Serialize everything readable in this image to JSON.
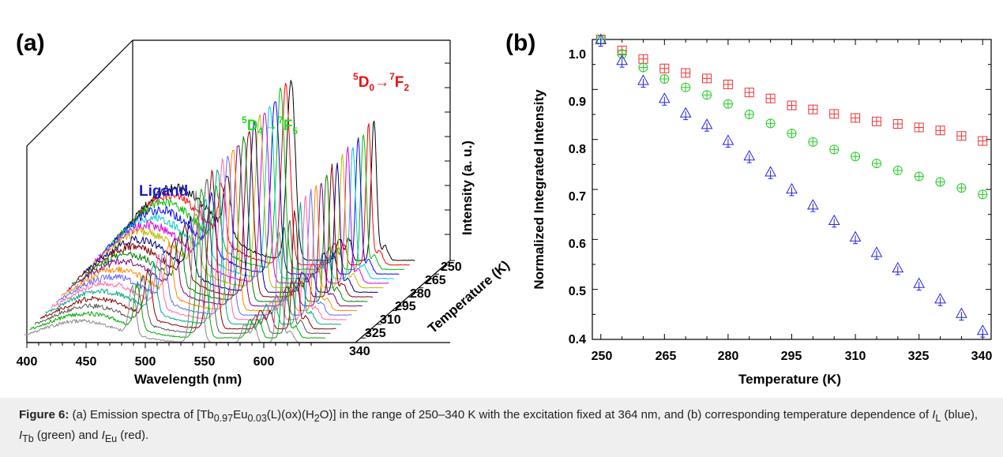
{
  "chart_data": [
    {
      "panel": "(a)",
      "type": "line",
      "style": "3d-waterfall",
      "xlabel": "Wavelength (nm)",
      "x_ticks": [
        "400",
        "450",
        "500",
        "550",
        "600"
      ],
      "xlim": [
        390,
        650
      ],
      "zlabel": "Intensity (a. u.)",
      "depth_label": "Temperature (K)",
      "depth_ticks": [
        "250",
        "265",
        "280",
        "295",
        "310",
        "325",
        "340"
      ],
      "temperatures": [
        250,
        255,
        260,
        265,
        270,
        275,
        280,
        285,
        290,
        295,
        300,
        305,
        310,
        315,
        320,
        325,
        330,
        335,
        340
      ],
      "series_colors": [
        "#000000",
        "#ff0000",
        "#00bb00",
        "#0000ff",
        "#00cccc",
        "#dd00dd",
        "#bbbb00",
        "#000080",
        "#800000",
        "#008000",
        "#800080",
        "#ff8800",
        "#6666ff",
        "#ff66aa",
        "#00aa88",
        "#880000",
        "#555555",
        "#00aa00",
        "#888888"
      ],
      "annotations": {
        "ligand": "Ligand",
        "tb_level_upper": "5",
        "tb_term_upper": "D",
        "tb_sub_upper": "4",
        "tb_level_lower": "7",
        "tb_term_lower": "F",
        "tb_sub_lower": "5",
        "eu_level_upper": "5",
        "eu_term_upper": "D",
        "eu_sub_upper": "0",
        "eu_level_lower": "7",
        "eu_term_lower": "F",
        "eu_sub_lower": "2",
        "arrow": "→"
      },
      "colors": {
        "ligand": "#1a1acc",
        "tb": "#22dd22",
        "eu": "#ee1111"
      }
    },
    {
      "panel": "(b)",
      "type": "scatter",
      "xlabel": "Temperature (K)",
      "ylabel": "Normalized Integrated Intensity",
      "xlim": [
        248,
        342
      ],
      "ylim": [
        0.4,
        1.0
      ],
      "x_ticks": [
        "250",
        "265",
        "280",
        "295",
        "310",
        "325",
        "340"
      ],
      "y_ticks": [
        "0.4",
        "0.5",
        "0.6",
        "0.7",
        "0.8",
        "0.9",
        "1.0"
      ],
      "x": [
        250,
        255,
        260,
        265,
        270,
        275,
        280,
        285,
        290,
        295,
        300,
        305,
        310,
        315,
        320,
        325,
        330,
        335,
        340
      ],
      "series": [
        {
          "values": [
            1.0,
            0.978,
            0.961,
            0.942,
            0.933,
            0.922,
            0.91,
            0.894,
            0.882,
            0.868,
            0.86,
            0.851,
            0.843,
            0.836,
            0.831,
            0.824,
            0.818,
            0.807,
            0.797
          ],
          "color": "#ee3333",
          "marker": "square-plus"
        },
        {
          "values": [
            1.0,
            0.971,
            0.944,
            0.921,
            0.904,
            0.889,
            0.871,
            0.85,
            0.832,
            0.812,
            0.795,
            0.78,
            0.766,
            0.752,
            0.738,
            0.726,
            0.715,
            0.703,
            0.69
          ],
          "color": "#22cc22",
          "marker": "circle-plus"
        },
        {
          "values": [
            1.0,
            0.958,
            0.918,
            0.882,
            0.853,
            0.83,
            0.798,
            0.767,
            0.735,
            0.701,
            0.669,
            0.638,
            0.605,
            0.574,
            0.543,
            0.512,
            0.481,
            0.452,
            0.418
          ],
          "color": "#2222dd",
          "marker": "triangle"
        }
      ]
    }
  ],
  "caption": {
    "label": "Figure 6:",
    "text1": "(a) Emission spectra of [Tb",
    "sub1": "0.97",
    "text2": "Eu",
    "sub2": "0.03",
    "text3": "(L)(ox)(H",
    "sub3": "2",
    "text4": "O)] in the range of 250–340 K with the excitation fixed at 364 nm, and (b) corresponding temperature dependence of ",
    "i1": "I",
    "s1": "L",
    "text5": " (blue), ",
    "i2": "I",
    "s2": "Tb",
    "text6": " (green) and ",
    "i3": "I",
    "s3": "Eu",
    "text7": " (red)."
  }
}
